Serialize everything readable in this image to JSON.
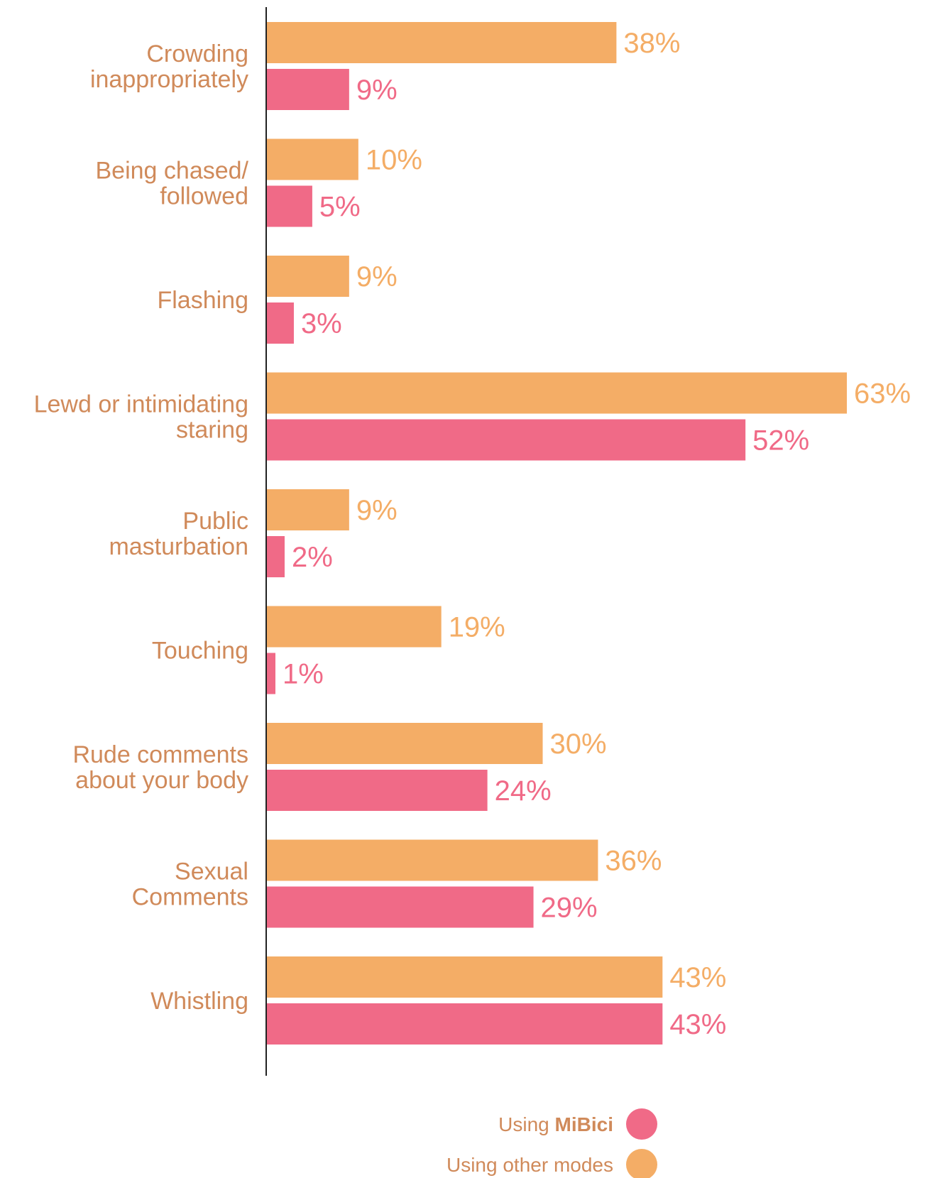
{
  "chart_data": {
    "type": "bar",
    "orientation": "horizontal",
    "categories": [
      [
        "Crowding",
        "inappropriately"
      ],
      [
        "Being chased/",
        "followed"
      ],
      [
        "Flashing"
      ],
      [
        "Lewd or intimidating",
        "staring"
      ],
      [
        "Public",
        "masturbation"
      ],
      [
        "Touching"
      ],
      [
        "Rude comments",
        "about your body"
      ],
      [
        "Sexual",
        "Comments"
      ],
      [
        "Whistling"
      ]
    ],
    "series": [
      {
        "name": "Using other modes",
        "values": [
          38,
          10,
          9,
          63,
          9,
          19,
          30,
          36,
          43
        ],
        "labels": [
          "38%",
          "10%",
          "9%",
          "63%",
          "9%",
          "19%",
          "30%",
          "36%",
          "43%"
        ]
      },
      {
        "name": "Using MiBici",
        "values": [
          9,
          5,
          3,
          52,
          2,
          1,
          24,
          29,
          43
        ],
        "labels": [
          "9%",
          "5%",
          "3%",
          "52%",
          "2%",
          "1%",
          "24%",
          "29%",
          "43%"
        ]
      }
    ],
    "xlim": [
      0,
      63
    ],
    "grid": false,
    "legend_position": "bottom-right"
  },
  "legend": {
    "mibici": {
      "prefix": "Using ",
      "bold": "MiBici"
    },
    "other": {
      "text": "Using other modes"
    }
  },
  "colors": {
    "other": "#f4ad66",
    "mibici": "#f06a87",
    "category_text": "#d08a5a",
    "axis": "#222222"
  }
}
